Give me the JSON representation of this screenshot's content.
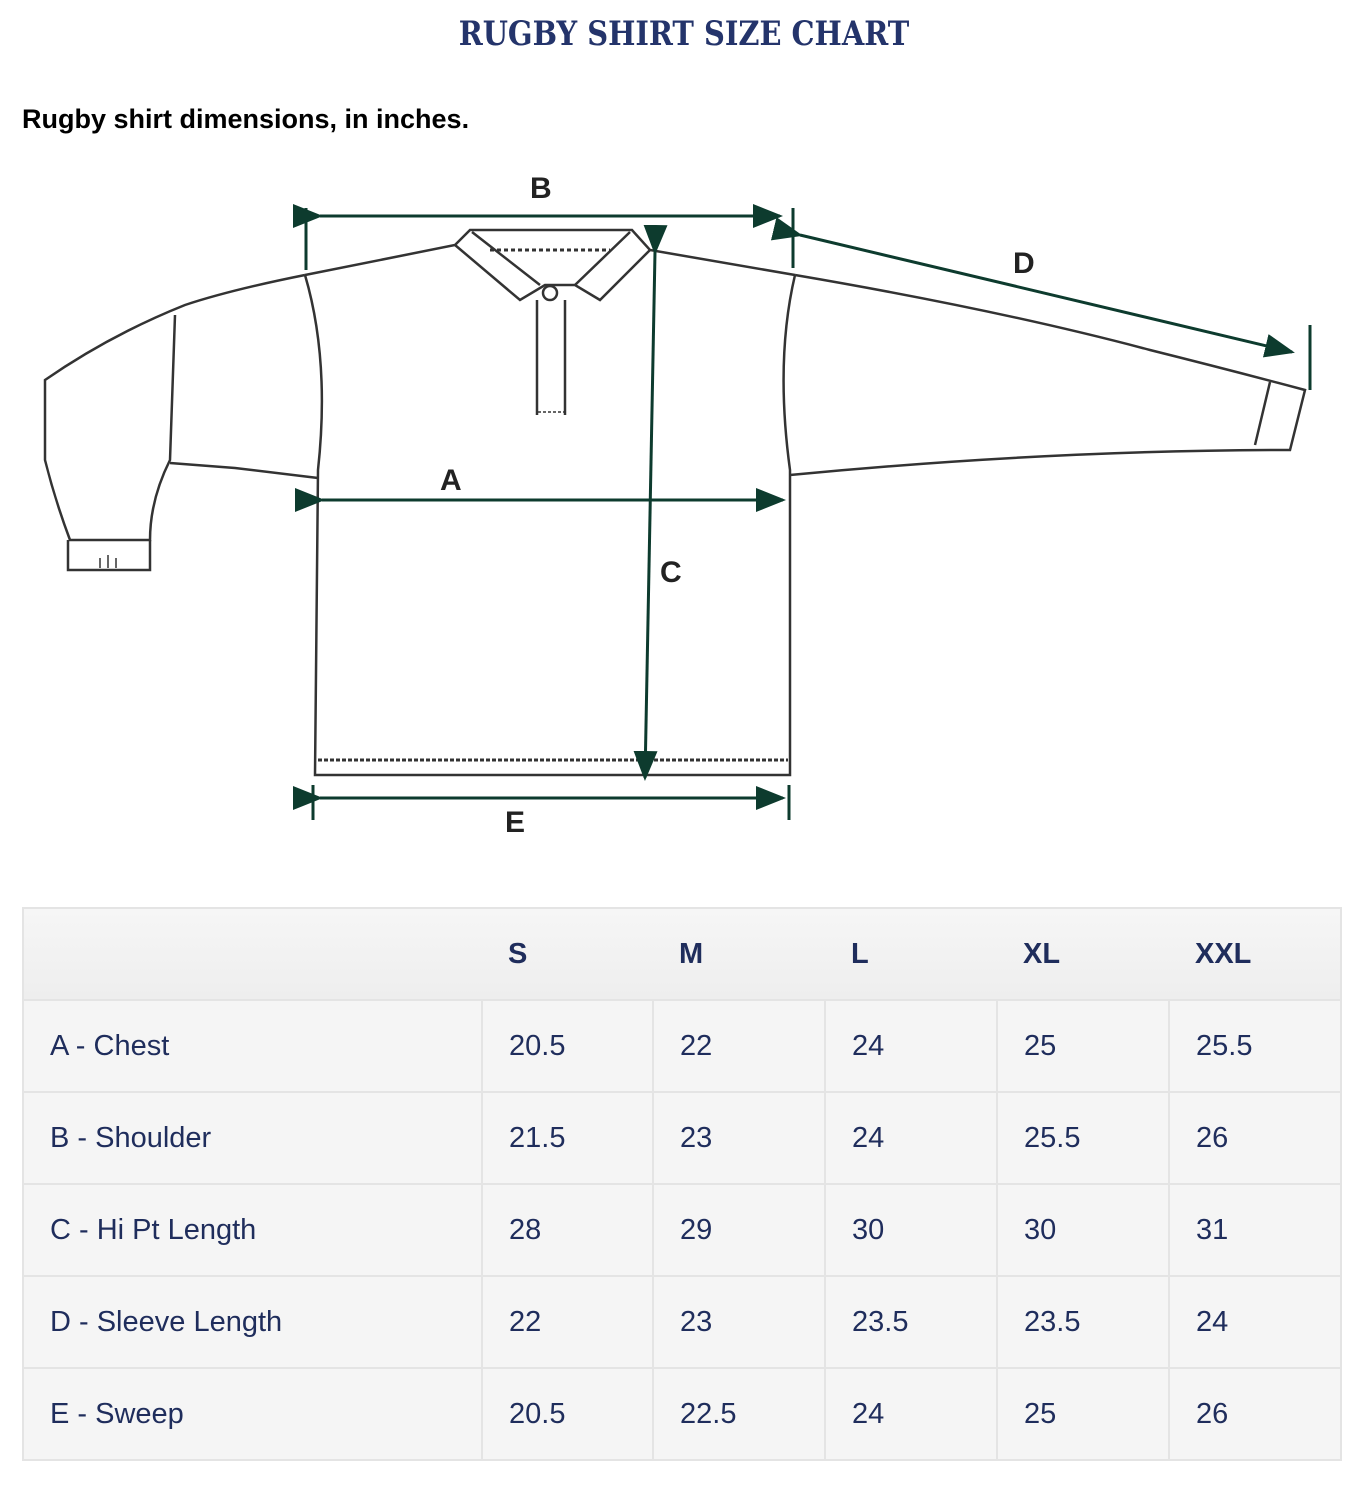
{
  "title": "RUGBY SHIRT SIZE CHART",
  "subtitle": "Rugby shirt dimensions, in inches.",
  "diagram": {
    "labels": {
      "A": "A",
      "B": "B",
      "C": "C",
      "D": "D",
      "E": "E"
    },
    "arrow_color": "#0d3b2e"
  },
  "table": {
    "headers": [
      "",
      "S",
      "M",
      "L",
      "XL",
      "XXL"
    ],
    "rows": [
      [
        "A - Chest",
        "20.5",
        "22",
        "24",
        "25",
        "25.5"
      ],
      [
        "B - Shoulder",
        "21.5",
        "23",
        "24",
        "25.5",
        "26"
      ],
      [
        "C - Hi Pt Length",
        "28",
        "29",
        "30",
        "30",
        "31"
      ],
      [
        "D - Sleeve Length",
        "22",
        "23",
        "23.5",
        "23.5",
        "24"
      ],
      [
        "E - Sweep",
        "20.5",
        "22.5",
        "24",
        "25",
        "26"
      ]
    ]
  }
}
